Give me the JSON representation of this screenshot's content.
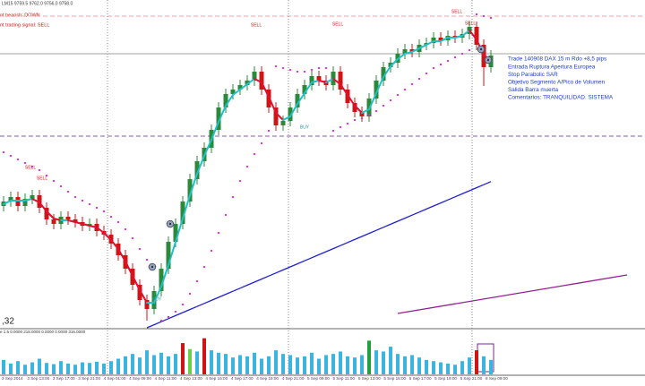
{
  "chart_data": {
    "type": "candlestick",
    "header": "LM15  9759.5 9762.0 9756.0 9758.0",
    "status_lines": [
      "nt bearish: DOWN",
      "nt trading signal: SELL"
    ],
    "corner_label": ",32",
    "volume_header": "e 1.5 0.0000 218.0000 0.0000 0.0000 316.0000",
    "notes": [
      "Trade 140908 DAX 15 m Rdo +8,5 pips",
      "Entrada Ruptura Apertura Europea",
      "Stop Parabolic SAR",
      "Objetivo Segmento A/Pico de Volumen",
      "Salida Barra muerta",
      "Comentarios: TRANQUILIDAD. SISTEMA"
    ],
    "signals": [
      "SELL",
      "SELL",
      "SELL",
      "SELL",
      "SELL",
      "SELL",
      "BUY",
      "BUY"
    ],
    "x_labels": [
      "3 Sep 2014",
      "3 Sep 13:00",
      "3 Sep 17:00",
      "3 Sep 21:00",
      "4 Sep 01:00",
      "4 Sep 09:00",
      "4 Sep 11:00",
      "4 Sep 13:00",
      "4 Sep 15:00",
      "4 Sep 17:00",
      "4 Sep 19:00",
      "4 Sep 21:00",
      "5 Sep 09:00",
      "5 Sep 11:00",
      "5 Sep 13:00",
      "5 Sep 15:00",
      "5 Sep 17:00",
      "5 Sep 19:00",
      "5 Sep 21:00",
      "8 Sep 09:00"
    ],
    "up_color": "#2b8a3a",
    "down_color": "#d01414",
    "ylim": [
      9617,
      9800
    ],
    "open": [
      9685,
      9687.5,
      9690,
      9685,
      9689,
      9691,
      9684,
      9677.5,
      9675,
      9679,
      9677.5,
      9676,
      9674,
      9675,
      9671,
      9669,
      9664,
      9657.5,
      9650,
      9641,
      9632.5,
      9627.5,
      9637.5,
      9650,
      9665,
      9675,
      9687.5,
      9700,
      9710,
      9717.5,
      9727.5,
      9740,
      9747.5,
      9750,
      9752.5,
      9755,
      9760,
      9750,
      9740,
      9730,
      9732.5,
      9740,
      9747.5,
      9752.5,
      9757.5,
      9755,
      9752.5,
      9760,
      9750,
      9742.5,
      9737.5,
      9735,
      9745,
      9755,
      9762.5,
      9765,
      9770,
      9772.5,
      9771,
      9775,
      9776,
      9779,
      9777.5,
      9780,
      9779,
      9781,
      9785,
      9775,
      9762.5
    ],
    "high": [
      9690.5,
      9693,
      9693,
      9692,
      9694,
      9694,
      9687,
      9680.5,
      9682,
      9682,
      9680.5,
      9679,
      9678,
      9678,
      9674,
      9672,
      9667,
      9660.5,
      9653,
      9644,
      9635.5,
      9640.5,
      9653,
      9668,
      9678,
      9690.5,
      9703,
      9713,
      9720.5,
      9730.5,
      9743,
      9750.5,
      9753,
      9755.5,
      9758,
      9763,
      9763,
      9753,
      9743,
      9735.5,
      9743,
      9750.5,
      9755.5,
      9760.5,
      9760.5,
      9758,
      9763,
      9763,
      9753,
      9745.5,
      9740.5,
      9748,
      9758,
      9765.5,
      9768,
      9773,
      9775.5,
      9775.5,
      9778,
      9779,
      9782,
      9782,
      9783,
      9783,
      9784,
      9788,
      9788,
      9778,
      9772
    ],
    "low": [
      9682,
      9684.5,
      9682,
      9682,
      9686,
      9681,
      9674.5,
      9672,
      9672,
      9674.5,
      9673,
      9671,
      9671,
      9668,
      9666,
      9661,
      9654.5,
      9647,
      9638,
      9629.5,
      9621,
      9624.5,
      9634.5,
      9647,
      9662,
      9672,
      9684.5,
      9697,
      9707,
      9714.5,
      9724.5,
      9737,
      9744.5,
      9747,
      9749.5,
      9752,
      9747,
      9737,
      9727,
      9727,
      9729.5,
      9737,
      9744.5,
      9749.5,
      9752,
      9749.5,
      9749.5,
      9747,
      9739.5,
      9734.5,
      9732,
      9732,
      9742,
      9752,
      9759.5,
      9762,
      9767,
      9768,
      9768,
      9772,
      9773,
      9774.5,
      9774.5,
      9776,
      9776,
      9778,
      9772,
      9752,
      9759.5
    ],
    "close": [
      9687.5,
      9690,
      9685,
      9689,
      9691,
      9684,
      9677.5,
      9675,
      9679,
      9677.5,
      9676,
      9674,
      9675,
      9671,
      9669,
      9664,
      9657.5,
      9650,
      9641,
      9632.5,
      9627.5,
      9637.5,
      9650,
      9665,
      9675,
      9687.5,
      9700,
      9710,
      9717.5,
      9727.5,
      9740,
      9747.5,
      9750,
      9752.5,
      9755,
      9760,
      9750,
      9740,
      9730,
      9732.5,
      9740,
      9747.5,
      9752.5,
      9757.5,
      9755,
      9752.5,
      9760,
      9750,
      9742.5,
      9737.5,
      9735,
      9745,
      9755,
      9762.5,
      9765,
      9770,
      9772.5,
      9771,
      9775,
      9776,
      9779,
      9777.5,
      9780,
      9779,
      9781,
      9785,
      9775,
      9762.5,
      9769
    ],
    "trend": {
      "up_color": "#20c0c8",
      "down_color": "#e01030",
      "values": [
        9686,
        9688,
        9688,
        9688,
        9689,
        9687,
        9682,
        9678,
        9677,
        9677,
        9676,
        9675,
        9674,
        9673,
        9670,
        9666,
        9661,
        9654,
        9646,
        9638,
        9631,
        9631,
        9640,
        9652,
        9665,
        9678,
        9691,
        9703,
        9713,
        9722,
        9732,
        9741,
        9747,
        9750,
        9753,
        9756,
        9754,
        9746,
        9737,
        9733,
        9735,
        9742,
        9748,
        9754,
        9755,
        9754,
        9756,
        9753,
        9747,
        9741,
        9737,
        9739,
        9748,
        9757,
        9763,
        9767,
        9770,
        9771,
        9773,
        9775,
        9777,
        9777,
        9779,
        9779,
        9780,
        9783,
        9778,
        9769,
        9767
      ]
    },
    "sar": {
      "color": "#e020d8",
      "values": [
        9715,
        9713,
        9711,
        9709,
        9707,
        9705,
        9702,
        9699,
        9696,
        9693,
        9690,
        9688,
        9686,
        9684,
        9682,
        9679,
        9676,
        9672,
        9667,
        9661,
        9655,
        9650,
        9621,
        9623,
        9626,
        9630,
        9636,
        9643,
        9651,
        9660,
        9670,
        9680,
        9690,
        9699,
        9707,
        9714,
        9720,
        9727,
        9763,
        9762,
        9761,
        9760,
        9760,
        9761,
        9762,
        9762,
        9727,
        9729,
        9731,
        9733,
        9734,
        9736,
        9738,
        9741,
        9744,
        9747,
        9750,
        9753,
        9756,
        9759,
        9762,
        9764,
        9766,
        9768,
        9770,
        9772,
        9792,
        9791,
        9790
      ]
    },
    "ma_slow": {
      "color": "#2020d0",
      "values": [
        null,
        null,
        null,
        null,
        null,
        null,
        null,
        null,
        null,
        null,
        null,
        null,
        null,
        null,
        null,
        null,
        null,
        null,
        null,
        null,
        9617,
        9618.7,
        9620.4,
        9622.1,
        9623.8,
        9625.5,
        9627.2,
        9628.9,
        9630.6,
        9632.3,
        9634,
        9635.7,
        9637.4,
        9639.1,
        9640.8,
        9642.5,
        9644.2,
        9645.9,
        9647.6,
        9649.3,
        9651,
        9652.7,
        9654.4,
        9656.1,
        9657.8,
        9659.5,
        9661.2,
        9662.9,
        9664.6,
        9666.3,
        9668,
        9669.7,
        9671.4,
        9673.1,
        9674.8,
        9676.5,
        9678.2,
        9679.9,
        9681.6,
        9683.3,
        9685,
        9686.7,
        9688.4,
        9690.1,
        9691.8,
        9693.5,
        9695.2,
        9696.9,
        9698.6
      ]
    },
    "ma_long": {
      "color": "#902090",
      "x": [
        55,
        87
      ],
      "values": [
        9625,
        9646.5
      ]
    },
    "levels": [
      {
        "value": 9791,
        "color": "#e8a0a0",
        "style": "dashed"
      },
      {
        "value": 9770,
        "color": "#a0a0a0",
        "style": "solid"
      },
      {
        "value": 9724,
        "color": "#8c5ca8",
        "style": "dashed"
      }
    ],
    "volume": {
      "ylim": [
        0,
        320
      ],
      "values": [
        120,
        90,
        110,
        80,
        100,
        130,
        95,
        85,
        110,
        90,
        80,
        100,
        95,
        105,
        90,
        110,
        130,
        150,
        170,
        140,
        200,
        160,
        180,
        150,
        170,
        260,
        210,
        190,
        300,
        200,
        180,
        170,
        140,
        160,
        150,
        180,
        130,
        150,
        200,
        170,
        160,
        140,
        150,
        180,
        130,
        160,
        170,
        190,
        150,
        140,
        160,
        280,
        200,
        190,
        230,
        170,
        150,
        160,
        140,
        120,
        110,
        100,
        90,
        80,
        110,
        140,
        200,
        150,
        120
      ],
      "colors": [
        "#3cb4e0",
        "#3cb4e0",
        "#3cb4e0",
        "#3cb4e0",
        "#3cb4e0",
        "#3cb4e0",
        "#3cb4e0",
        "#3cb4e0",
        "#3cb4e0",
        "#3cb4e0",
        "#3cb4e0",
        "#3cb4e0",
        "#3cb4e0",
        "#3cb4e0",
        "#3cb4e0",
        "#3cb4e0",
        "#3cb4e0",
        "#3cb4e0",
        "#3cb4e0",
        "#3cb4e0",
        "#3cb4e0",
        "#3cb4e0",
        "#3cb4e0",
        "#3cb4e0",
        "#3cb4e0",
        "#d01414",
        "#6ad04a",
        "#3cb4e0",
        "#d01414",
        "#3cb4e0",
        "#3cb4e0",
        "#3cb4e0",
        "#3cb4e0",
        "#3cb4e0",
        "#3cb4e0",
        "#3cb4e0",
        "#3cb4e0",
        "#3cb4e0",
        "#3cb4e0",
        "#3cb4e0",
        "#3cb4e0",
        "#3cb4e0",
        "#3cb4e0",
        "#3cb4e0",
        "#3cb4e0",
        "#3cb4e0",
        "#3cb4e0",
        "#3cb4e0",
        "#3cb4e0",
        "#3cb4e0",
        "#3cb4e0",
        "#22a040",
        "#3cb4e0",
        "#3cb4e0",
        "#3cb4e0",
        "#3cb4e0",
        "#3cb4e0",
        "#3cb4e0",
        "#3cb4e0",
        "#3cb4e0",
        "#3cb4e0",
        "#3cb4e0",
        "#3cb4e0",
        "#3cb4e0",
        "#3cb4e0",
        "#3cb4e0",
        "#d01414",
        "#3cb4e0",
        "#3cb4e0"
      ]
    }
  }
}
